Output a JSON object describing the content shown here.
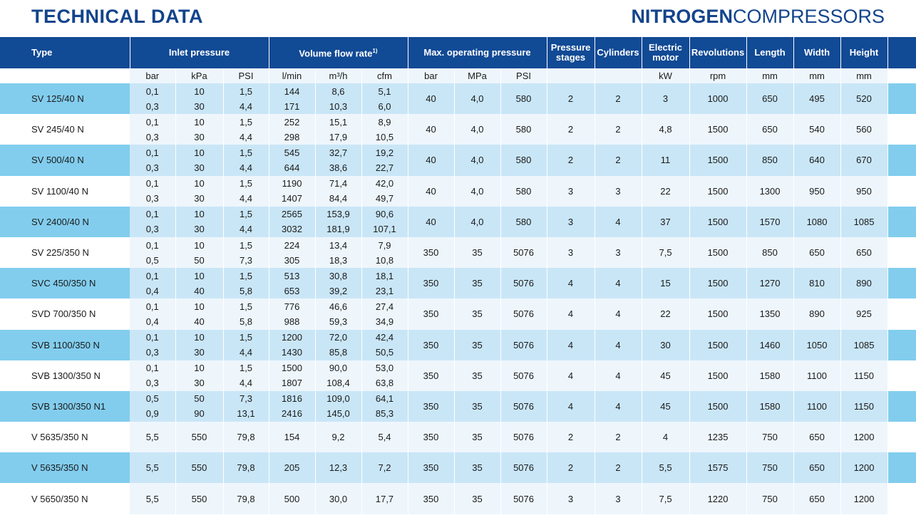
{
  "header": {
    "left_title": "TECHNICAL DATA",
    "right_title_strong": "NITROGEN",
    "right_title_light": "COMPRESSORS"
  },
  "columns": {
    "type": "Type",
    "inlet_pressure": "Inlet pressure",
    "volume_flow_rate": "Volume flow rate",
    "volume_flow_rate_note": "1)",
    "max_operating_pressure": "Max. operating pressure",
    "pressure_stages_1": "Pressure",
    "pressure_stages_2": "stages",
    "cylinders": "Cylinders",
    "electric_motor_1": "Electric",
    "electric_motor_2": "motor",
    "revolutions": "Revolutions",
    "length": "Length",
    "width": "Width",
    "height": "Height"
  },
  "units": [
    "bar",
    "kPa",
    "PSI",
    "l/min",
    "m³/h",
    "cfm",
    "bar",
    "MPa",
    "PSI",
    "",
    "",
    "kW",
    "rpm",
    "mm",
    "mm",
    "mm"
  ],
  "rows": [
    {
      "type": "SV 125/40 N",
      "bar": [
        "0,1",
        "0,3"
      ],
      "kpa": [
        "10",
        "30"
      ],
      "psi": [
        "1,5",
        "4,4"
      ],
      "lmin": [
        "144",
        "171"
      ],
      "m3h": [
        "8,6",
        "10,3"
      ],
      "cfm": [
        "5,1",
        "6,0"
      ],
      "mop_bar": "40",
      "mop_mpa": "4,0",
      "mop_psi": "580",
      "stages": "2",
      "cylinders": "2",
      "kw": "3",
      "rpm": "1000",
      "length": "650",
      "width": "495",
      "height": "520"
    },
    {
      "type": "SV 245/40 N",
      "bar": [
        "0,1",
        "0,3"
      ],
      "kpa": [
        "10",
        "30"
      ],
      "psi": [
        "1,5",
        "4,4"
      ],
      "lmin": [
        "252",
        "298"
      ],
      "m3h": [
        "15,1",
        "17,9"
      ],
      "cfm": [
        "8,9",
        "10,5"
      ],
      "mop_bar": "40",
      "mop_mpa": "4,0",
      "mop_psi": "580",
      "stages": "2",
      "cylinders": "2",
      "kw": "4,8",
      "rpm": "1500",
      "length": "650",
      "width": "540",
      "height": "560"
    },
    {
      "type": "SV 500/40 N",
      "bar": [
        "0,1",
        "0,3"
      ],
      "kpa": [
        "10",
        "30"
      ],
      "psi": [
        "1,5",
        "4,4"
      ],
      "lmin": [
        "545",
        "644"
      ],
      "m3h": [
        "32,7",
        "38,6"
      ],
      "cfm": [
        "19,2",
        "22,7"
      ],
      "mop_bar": "40",
      "mop_mpa": "4,0",
      "mop_psi": "580",
      "stages": "2",
      "cylinders": "2",
      "kw": "11",
      "rpm": "1500",
      "length": "850",
      "width": "640",
      "height": "670"
    },
    {
      "type": "SV 1100/40 N",
      "bar": [
        "0,1",
        "0,3"
      ],
      "kpa": [
        "10",
        "30"
      ],
      "psi": [
        "1,5",
        "4,4"
      ],
      "lmin": [
        "1190",
        "1407"
      ],
      "m3h": [
        "71,4",
        "84,4"
      ],
      "cfm": [
        "42,0",
        "49,7"
      ],
      "mop_bar": "40",
      "mop_mpa": "4,0",
      "mop_psi": "580",
      "stages": "3",
      "cylinders": "3",
      "kw": "22",
      "rpm": "1500",
      "length": "1300",
      "width": "950",
      "height": "950"
    },
    {
      "type": "SV 2400/40 N",
      "bar": [
        "0,1",
        "0,3"
      ],
      "kpa": [
        "10",
        "30"
      ],
      "psi": [
        "1,5",
        "4,4"
      ],
      "lmin": [
        "2565",
        "3032"
      ],
      "m3h": [
        "153,9",
        "181,9"
      ],
      "cfm": [
        "90,6",
        "107,1"
      ],
      "mop_bar": "40",
      "mop_mpa": "4,0",
      "mop_psi": "580",
      "stages": "3",
      "cylinders": "4",
      "kw": "37",
      "rpm": "1500",
      "length": "1570",
      "width": "1080",
      "height": "1085"
    },
    {
      "type": "SV 225/350 N",
      "bar": [
        "0,1",
        "0,5"
      ],
      "kpa": [
        "10",
        "50"
      ],
      "psi": [
        "1,5",
        "7,3"
      ],
      "lmin": [
        "224",
        "305"
      ],
      "m3h": [
        "13,4",
        "18,3"
      ],
      "cfm": [
        "7,9",
        "10,8"
      ],
      "mop_bar": "350",
      "mop_mpa": "35",
      "mop_psi": "5076",
      "stages": "3",
      "cylinders": "3",
      "kw": "7,5",
      "rpm": "1500",
      "length": "850",
      "width": "650",
      "height": "650"
    },
    {
      "type": "SVC 450/350 N",
      "bar": [
        "0,1",
        "0,4"
      ],
      "kpa": [
        "10",
        "40"
      ],
      "psi": [
        "1,5",
        "5,8"
      ],
      "lmin": [
        "513",
        "653"
      ],
      "m3h": [
        "30,8",
        "39,2"
      ],
      "cfm": [
        "18,1",
        "23,1"
      ],
      "mop_bar": "350",
      "mop_mpa": "35",
      "mop_psi": "5076",
      "stages": "4",
      "cylinders": "4",
      "kw": "15",
      "rpm": "1500",
      "length": "1270",
      "width": "810",
      "height": "890"
    },
    {
      "type": "SVD 700/350 N",
      "bar": [
        "0,1",
        "0,4"
      ],
      "kpa": [
        "10",
        "40"
      ],
      "psi": [
        "1,5",
        "5,8"
      ],
      "lmin": [
        "776",
        "988"
      ],
      "m3h": [
        "46,6",
        "59,3"
      ],
      "cfm": [
        "27,4",
        "34,9"
      ],
      "mop_bar": "350",
      "mop_mpa": "35",
      "mop_psi": "5076",
      "stages": "4",
      "cylinders": "4",
      "kw": "22",
      "rpm": "1500",
      "length": "1350",
      "width": "890",
      "height": "925"
    },
    {
      "type": "SVB 1100/350 N",
      "bar": [
        "0,1",
        "0,3"
      ],
      "kpa": [
        "10",
        "30"
      ],
      "psi": [
        "1,5",
        "4,4"
      ],
      "lmin": [
        "1200",
        "1430"
      ],
      "m3h": [
        "72,0",
        "85,8"
      ],
      "cfm": [
        "42,4",
        "50,5"
      ],
      "mop_bar": "350",
      "mop_mpa": "35",
      "mop_psi": "5076",
      "stages": "4",
      "cylinders": "4",
      "kw": "30",
      "rpm": "1500",
      "length": "1460",
      "width": "1050",
      "height": "1085"
    },
    {
      "type": "SVB 1300/350 N",
      "bar": [
        "0,1",
        "0,3"
      ],
      "kpa": [
        "10",
        "30"
      ],
      "psi": [
        "1,5",
        "4,4"
      ],
      "lmin": [
        "1500",
        "1807"
      ],
      "m3h": [
        "90,0",
        "108,4"
      ],
      "cfm": [
        "53,0",
        "63,8"
      ],
      "mop_bar": "350",
      "mop_mpa": "35",
      "mop_psi": "5076",
      "stages": "4",
      "cylinders": "4",
      "kw": "45",
      "rpm": "1500",
      "length": "1580",
      "width": "1100",
      "height": "1150"
    },
    {
      "type": "SVB 1300/350 N1",
      "bar": [
        "0,5",
        "0,9"
      ],
      "kpa": [
        "50",
        "90"
      ],
      "psi": [
        "7,3",
        "13,1"
      ],
      "lmin": [
        "1816",
        "2416"
      ],
      "m3h": [
        "109,0",
        "145,0"
      ],
      "cfm": [
        "64,1",
        "85,3"
      ],
      "mop_bar": "350",
      "mop_mpa": "35",
      "mop_psi": "5076",
      "stages": "4",
      "cylinders": "4",
      "kw": "45",
      "rpm": "1500",
      "length": "1580",
      "width": "1100",
      "height": "1150"
    },
    {
      "type": "V 5635/350 N",
      "bar": [
        "5,5"
      ],
      "kpa": [
        "550"
      ],
      "psi": [
        "79,8"
      ],
      "lmin": [
        "154"
      ],
      "m3h": [
        "9,2"
      ],
      "cfm": [
        "5,4"
      ],
      "mop_bar": "350",
      "mop_mpa": "35",
      "mop_psi": "5076",
      "stages": "2",
      "cylinders": "2",
      "kw": "4",
      "rpm": "1235",
      "length": "750",
      "width": "650",
      "height": "1200"
    },
    {
      "type": "V 5635/350 N",
      "bar": [
        "5,5"
      ],
      "kpa": [
        "550"
      ],
      "psi": [
        "79,8"
      ],
      "lmin": [
        "205"
      ],
      "m3h": [
        "12,3"
      ],
      "cfm": [
        "7,2"
      ],
      "mop_bar": "350",
      "mop_mpa": "35",
      "mop_psi": "5076",
      "stages": "2",
      "cylinders": "2",
      "kw": "5,5",
      "rpm": "1575",
      "length": "750",
      "width": "650",
      "height": "1200"
    },
    {
      "type": "V 5650/350 N",
      "bar": [
        "5,5"
      ],
      "kpa": [
        "550"
      ],
      "psi": [
        "79,8"
      ],
      "lmin": [
        "500"
      ],
      "m3h": [
        "30,0"
      ],
      "cfm": [
        "17,7"
      ],
      "mop_bar": "350",
      "mop_mpa": "35",
      "mop_psi": "5076",
      "stages": "3",
      "cylinders": "3",
      "kw": "7,5",
      "rpm": "1220",
      "length": "750",
      "width": "650",
      "height": "1200"
    }
  ]
}
